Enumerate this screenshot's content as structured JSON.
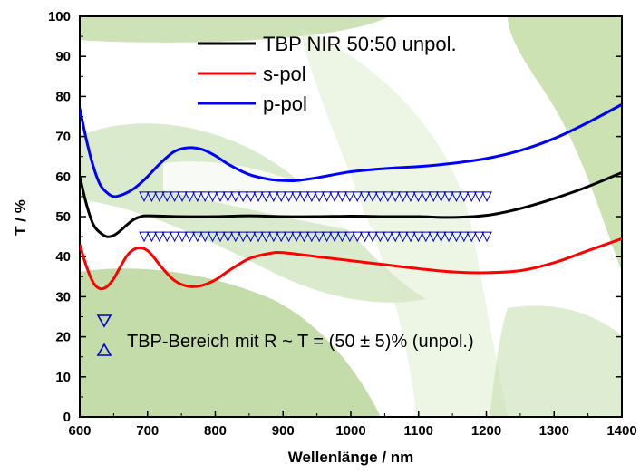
{
  "chart_data": {
    "type": "line",
    "xlabel": "Wellenlänge / nm",
    "ylabel": "T / %",
    "xlim": [
      600,
      1400
    ],
    "ylim": [
      0,
      100
    ],
    "xticks": [
      600,
      700,
      800,
      900,
      1000,
      1100,
      1200,
      1300,
      1400
    ],
    "yticks": [
      0,
      10,
      20,
      30,
      40,
      50,
      60,
      70,
      80,
      90,
      100
    ],
    "grid": false,
    "legend_position": "top-center",
    "series": [
      {
        "name": "TBP NIR 50:50 unpol.",
        "color": "#000000",
        "x": [
          600,
          610,
          620,
          630,
          640,
          650,
          660,
          670,
          680,
          690,
          700,
          750,
          800,
          850,
          900,
          950,
          1000,
          1050,
          1100,
          1150,
          1200,
          1250,
          1300,
          1350,
          1400
        ],
        "y": [
          60,
          53,
          48,
          46,
          45,
          45.3,
          46.5,
          48,
          49.3,
          50,
          50.2,
          50,
          50,
          50.2,
          50,
          50,
          50.1,
          50,
          50,
          49.8,
          50.3,
          52,
          54.5,
          57.5,
          61
        ]
      },
      {
        "name": "s-pol",
        "color": "#ff0000",
        "x": [
          600,
          610,
          620,
          630,
          640,
          650,
          660,
          670,
          680,
          690,
          700,
          710,
          720,
          740,
          760,
          780,
          800,
          820,
          850,
          880,
          900,
          950,
          1000,
          1050,
          1100,
          1150,
          1200,
          1250,
          1300,
          1350,
          1400
        ],
        "y": [
          43,
          37.5,
          33.5,
          32,
          32.5,
          34.5,
          37.5,
          40.3,
          41.8,
          42.2,
          41.5,
          39.7,
          37.5,
          34,
          32.6,
          32.8,
          34.2,
          36.5,
          39.5,
          40.8,
          41,
          40,
          39,
          38,
          37,
          36.2,
          36,
          36.5,
          38.5,
          41.5,
          44.5
        ]
      },
      {
        "name": "p-pol",
        "color": "#0000ff",
        "x": [
          600,
          610,
          620,
          630,
          640,
          650,
          660,
          670,
          680,
          690,
          700,
          720,
          740,
          760,
          780,
          800,
          820,
          850,
          880,
          900,
          920,
          950,
          1000,
          1050,
          1100,
          1150,
          1200,
          1250,
          1300,
          1350,
          1400
        ],
        "y": [
          77,
          69,
          62.5,
          58,
          56,
          55,
          55.3,
          56,
          57,
          58.4,
          60,
          63.5,
          66.3,
          67.2,
          66.8,
          65.2,
          63,
          60.5,
          59.3,
          59,
          59,
          59.7,
          61.2,
          62,
          62.5,
          63.3,
          64.5,
          66.5,
          69.5,
          73.5,
          78
        ]
      }
    ],
    "band": {
      "x_start": 695,
      "x_end": 1205,
      "upper": 55,
      "lower": 45,
      "marker_color": "#0000cc",
      "label": "TBP-Bereich mit R ~ T = (50 ± 5)% (unpol.)"
    }
  }
}
